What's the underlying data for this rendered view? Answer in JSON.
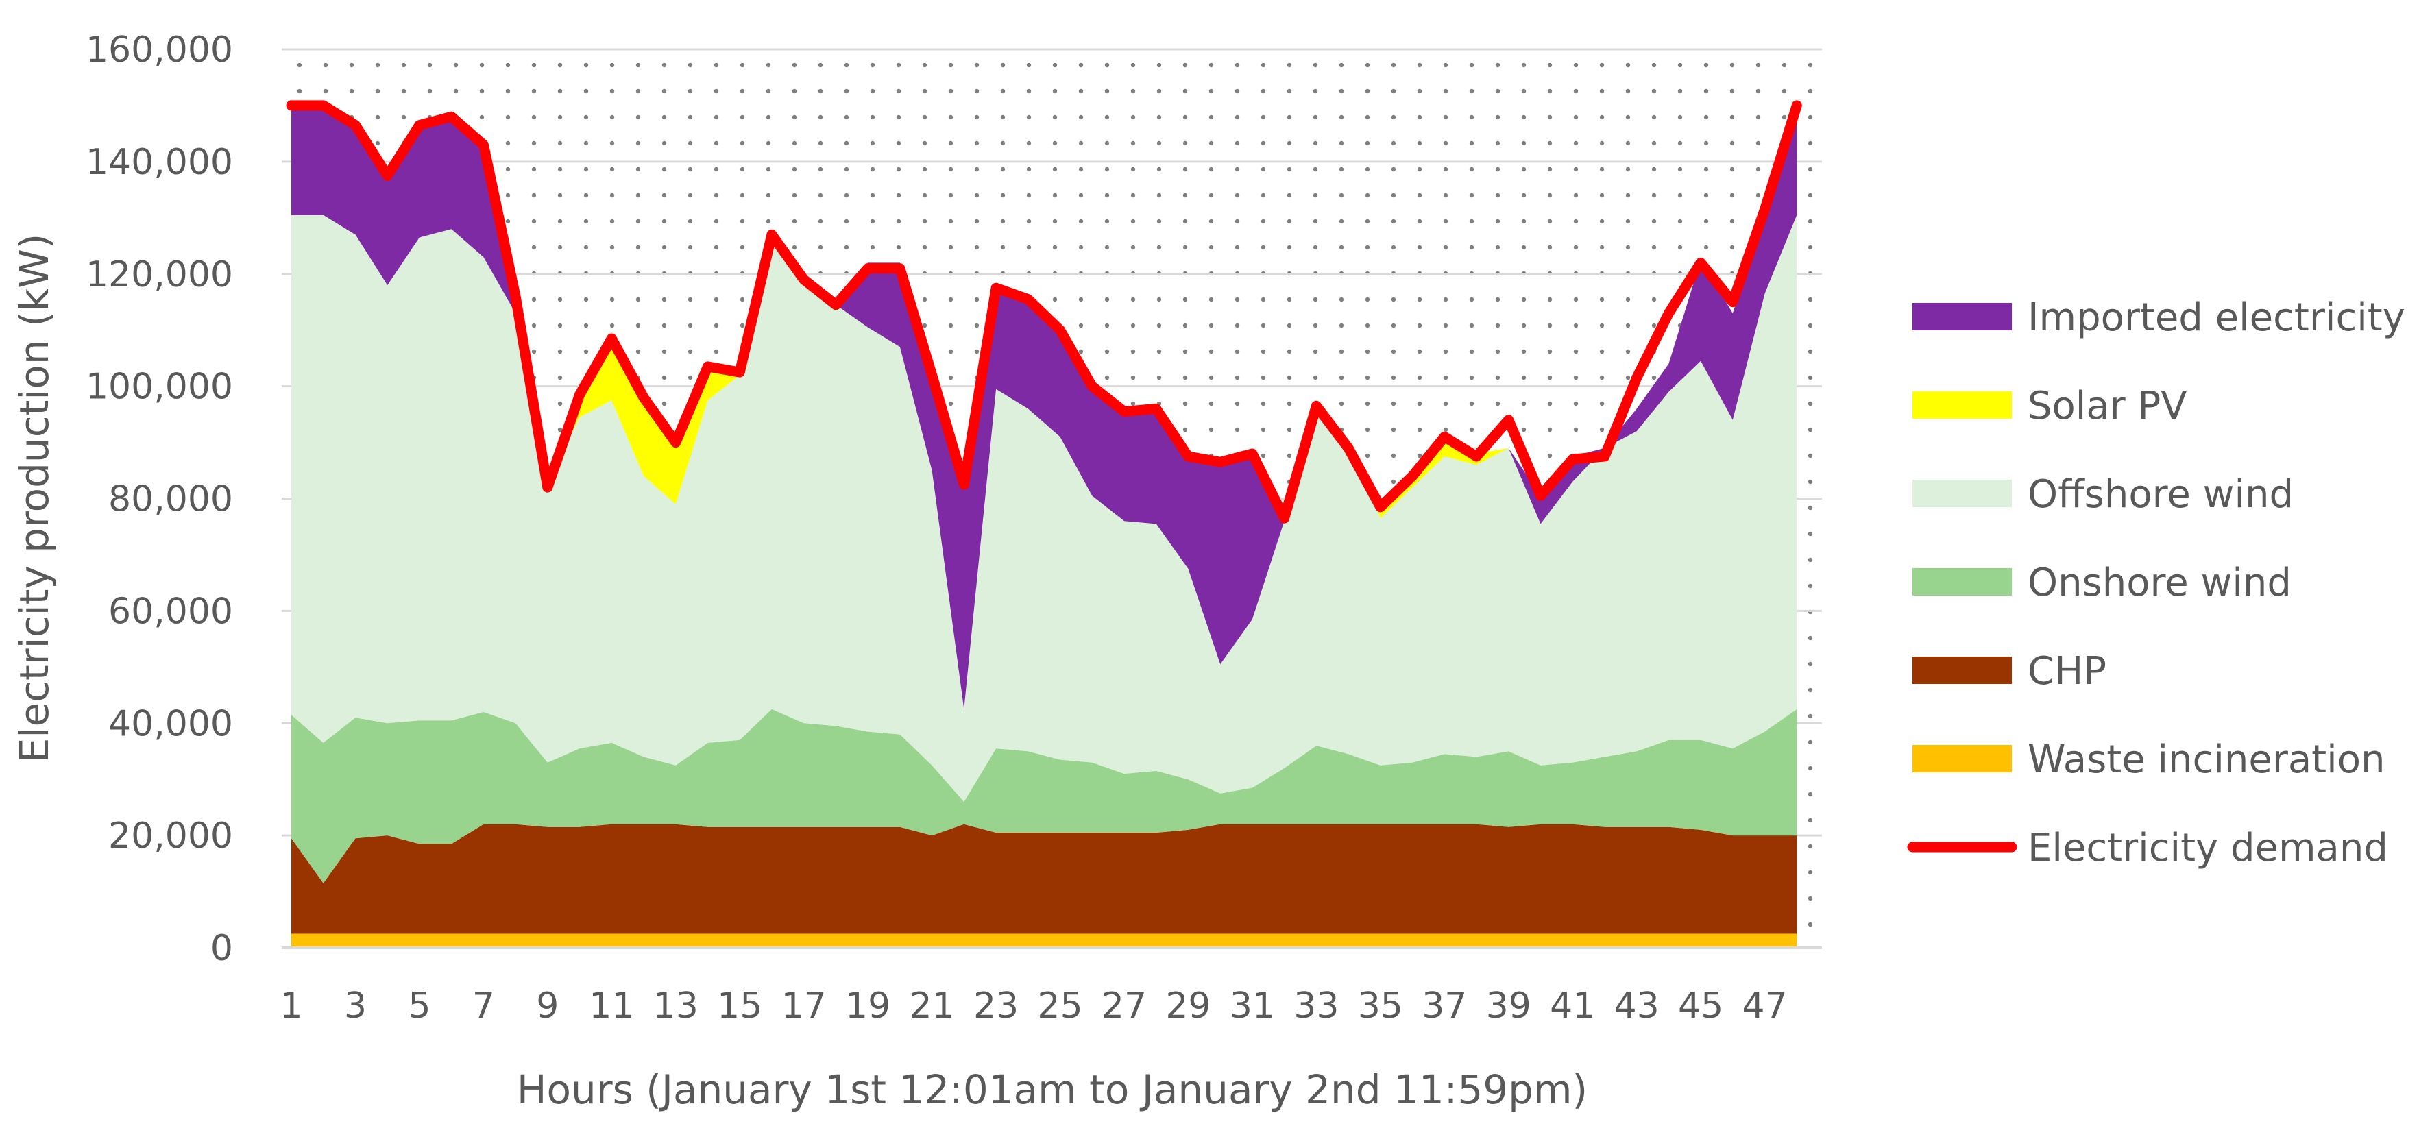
{
  "chart_data": {
    "type": "area",
    "stacked": true,
    "xlabel": "Hours (January 1st 12:01am to January 2nd 11:59pm)",
    "ylabel": "Electricity production (kW)",
    "x": [
      1,
      2,
      3,
      4,
      5,
      6,
      7,
      8,
      9,
      10,
      11,
      12,
      13,
      14,
      15,
      16,
      17,
      18,
      19,
      20,
      21,
      22,
      23,
      24,
      25,
      26,
      27,
      28,
      29,
      30,
      31,
      32,
      33,
      34,
      35,
      36,
      37,
      38,
      39,
      40,
      41,
      42,
      43,
      44,
      45,
      46,
      47,
      48
    ],
    "x_tick_labels": [
      "1",
      "3",
      "5",
      "7",
      "9",
      "11",
      "13",
      "15",
      "17",
      "19",
      "21",
      "23",
      "25",
      "27",
      "29",
      "31",
      "33",
      "35",
      "37",
      "39",
      "41",
      "43",
      "45",
      "47"
    ],
    "ylim": [
      0,
      160000
    ],
    "y_tick_labels": [
      "0",
      "20,000",
      "40,000",
      "60,000",
      "80,000",
      "100,000",
      "120,000",
      "140,000",
      "160,000"
    ],
    "grid": "horizontal",
    "legend_position": "right",
    "plot_background": "dotted",
    "series": [
      {
        "name": "Waste incineration",
        "color": "#ffc000",
        "values": [
          2500,
          2500,
          2500,
          2500,
          2500,
          2500,
          2500,
          2500,
          2500,
          2500,
          2500,
          2500,
          2500,
          2500,
          2500,
          2500,
          2500,
          2500,
          2500,
          2500,
          2500,
          2500,
          2500,
          2500,
          2500,
          2500,
          2500,
          2500,
          2500,
          2500,
          2500,
          2500,
          2500,
          2500,
          2500,
          2500,
          2500,
          2500,
          2500,
          2500,
          2500,
          2500,
          2500,
          2500,
          2500,
          2500,
          2500,
          2500
        ]
      },
      {
        "name": "CHP",
        "color": "#993300",
        "values": [
          17000,
          9000,
          17000,
          17500,
          16000,
          16000,
          19500,
          19500,
          19000,
          19000,
          19500,
          19500,
          19500,
          19000,
          19000,
          19000,
          19000,
          19000,
          19000,
          19000,
          17500,
          19500,
          18000,
          18000,
          18000,
          18000,
          18000,
          18000,
          18500,
          19500,
          19500,
          19500,
          19500,
          19500,
          19500,
          19500,
          19500,
          19500,
          19000,
          19500,
          19500,
          19000,
          19000,
          19000,
          18500,
          17500,
          17500,
          17500
        ]
      },
      {
        "name": "Onshore wind",
        "color": "#98d48e",
        "values": [
          22000,
          25000,
          21500,
          20000,
          22000,
          22000,
          20000,
          18000,
          11500,
          14000,
          14500,
          12000,
          10500,
          15000,
          15500,
          21000,
          18500,
          18000,
          17000,
          16500,
          12500,
          4000,
          15000,
          14500,
          13000,
          12500,
          10500,
          11000,
          9000,
          5500,
          6500,
          10000,
          14000,
          12500,
          10500,
          11000,
          12500,
          12000,
          13500,
          10500,
          11000,
          12500,
          13500,
          15500,
          16000,
          15500,
          18500,
          22500
        ]
      },
      {
        "name": "Offshore wind",
        "color": "#ddf0dc",
        "values": [
          89000,
          94000,
          86000,
          78000,
          86000,
          87500,
          81000,
          73000,
          50000,
          59000,
          61000,
          50000,
          46500,
          61000,
          65000,
          85000,
          79000,
          75000,
          72000,
          69000,
          52500,
          16500,
          64000,
          61000,
          57500,
          47500,
          45000,
          44000,
          37500,
          23000,
          30000,
          44000,
          61000,
          55500,
          44000,
          49000,
          53000,
          52000,
          54000,
          43000,
          50000,
          55000,
          57000,
          62000,
          67500,
          58500,
          78000,
          88000
        ]
      },
      {
        "name": "Solar PV",
        "color": "#ffff00",
        "values": [
          0,
          0,
          0,
          0,
          0,
          0,
          0,
          0,
          0,
          4000,
          11000,
          14000,
          11000,
          6000,
          1000,
          0,
          0,
          0,
          0,
          0,
          0,
          0,
          0,
          0,
          0,
          0,
          0,
          0,
          0,
          0,
          0,
          0,
          0,
          0,
          2000,
          2000,
          3000,
          2000,
          0,
          0,
          0,
          0,
          0,
          0,
          0,
          0,
          0,
          0
        ]
      },
      {
        "name": "Imported electricity",
        "color": "#7f2aa5",
        "values": [
          19500,
          20000,
          20000,
          20000,
          20500,
          20500,
          20500,
          3000,
          0,
          0,
          0,
          0,
          0,
          0,
          0,
          0,
          0,
          0,
          11500,
          15000,
          17000,
          40000,
          18500,
          20000,
          19500,
          20000,
          20000,
          21000,
          20500,
          36500,
          30000,
          0,
          0,
          0,
          0,
          0,
          0,
          0,
          0,
          5000,
          4500,
          0,
          4000,
          5000,
          18000,
          19000,
          14500,
          19500
        ]
      },
      {
        "name": "Electricity demand",
        "color": "#ff0000",
        "type": "line",
        "values": [
          150000,
          150000,
          146500,
          137500,
          146500,
          148000,
          143000,
          116000,
          82000,
          98500,
          108500,
          98000,
          90000,
          103500,
          102500,
          127000,
          119000,
          114500,
          121000,
          121000,
          102000,
          82500,
          117500,
          115500,
          110000,
          100000,
          95500,
          96000,
          87500,
          86500,
          88000,
          76500,
          96500,
          89000,
          78500,
          84000,
          91000,
          87500,
          94000,
          80500,
          87000,
          87500,
          101500,
          113000,
          122000,
          115000,
          131500,
          150000
        ]
      }
    ]
  }
}
